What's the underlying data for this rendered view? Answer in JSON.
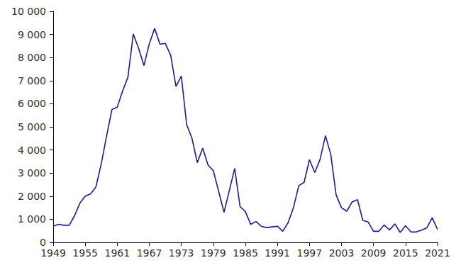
{
  "chart_data": {
    "type": "line",
    "color": "#2214a6",
    "grid": false,
    "x": [
      1949,
      1950,
      1951,
      1952,
      1953,
      1954,
      1955,
      1956,
      1957,
      1958,
      1959,
      1960,
      1961,
      1962,
      1963,
      1964,
      1965,
      1966,
      1967,
      1968,
      1969,
      1970,
      1971,
      1972,
      1973,
      1974,
      1975,
      1976,
      1977,
      1978,
      1979,
      1980,
      1981,
      1982,
      1983,
      1984,
      1985,
      1986,
      1987,
      1988,
      1989,
      1990,
      1991,
      1992,
      1993,
      1994,
      1995,
      1996,
      1997,
      1998,
      1999,
      2000,
      2001,
      2002,
      2003,
      2004,
      2005,
      2006,
      2007,
      2008,
      2009,
      2010,
      2011,
      2012,
      2013,
      2014,
      2015,
      2016,
      2017,
      2018,
      2019,
      2020,
      2021
    ],
    "values": [
      700,
      780,
      740,
      740,
      1150,
      1700,
      2000,
      2100,
      2400,
      3400,
      4600,
      5750,
      5850,
      6550,
      7150,
      9020,
      8400,
      7650,
      8600,
      9260,
      8580,
      8610,
      8100,
      6750,
      7200,
      5100,
      4500,
      3450,
      4080,
      3350,
      3100,
      2200,
      1300,
      2250,
      3200,
      1550,
      1330,
      780,
      900,
      690,
      640,
      670,
      700,
      480,
      850,
      1500,
      2450,
      2600,
      3580,
      3020,
      3600,
      4620,
      3800,
      2050,
      1500,
      1350,
      1750,
      1850,
      950,
      880,
      480,
      480,
      750,
      540,
      800,
      430,
      720,
      450,
      450,
      530,
      630,
      1060,
      560
    ],
    "xlim": [
      1949,
      2021
    ],
    "xticks": [
      1949,
      1955,
      1961,
      1967,
      1973,
      1979,
      1985,
      1991,
      1997,
      2003,
      2009,
      2015,
      2021
    ],
    "ylim": [
      0,
      10000
    ],
    "yticks": [
      0,
      {
        "value": 1000,
        "label": "1 000"
      },
      {
        "value": 2000,
        "label": "2 000"
      },
      {
        "value": 3000,
        "label": "3 000"
      },
      {
        "value": 4000,
        "label": "4 000"
      },
      {
        "value": 5000,
        "label": "5 000"
      },
      {
        "value": 6000,
        "label": "6 000"
      },
      {
        "value": 7000,
        "label": "7 000"
      },
      {
        "value": 8000,
        "label": "8 000"
      },
      {
        "value": 9000,
        "label": "9 000"
      },
      {
        "value": 10000,
        "label": "10 000"
      }
    ]
  }
}
